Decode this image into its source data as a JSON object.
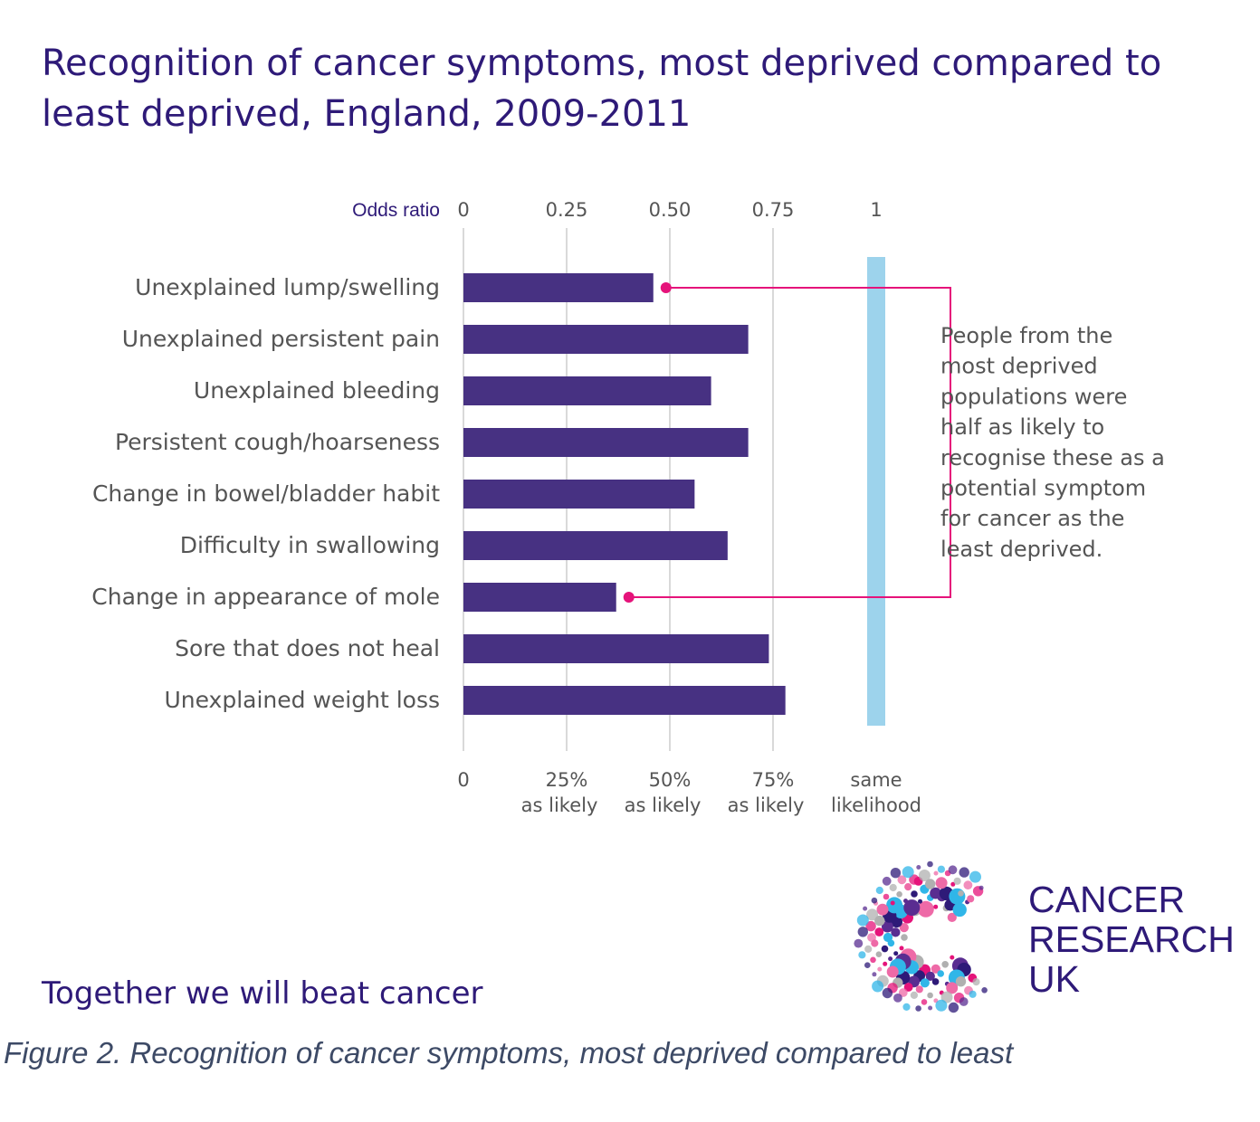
{
  "title": "Recognition of cancer symptoms, most deprived compared to least deprived, England, 2009-2011",
  "chart_data": {
    "type": "bar",
    "orientation": "horizontal",
    "axis_title": "Odds ratio",
    "top_ticks": [
      "0",
      "0.25",
      "0.50",
      "0.75",
      "1"
    ],
    "tick_values": [
      0,
      0.25,
      0.5,
      0.75,
      1
    ],
    "bottom_ticks": [
      {
        "line1": "0",
        "line2": ""
      },
      {
        "line1": "25%",
        "line2": "as likely"
      },
      {
        "line1": "50%",
        "line2": "as likely"
      },
      {
        "line1": "75%",
        "line2": "as likely"
      },
      {
        "line1": "same",
        "line2": "likelihood"
      }
    ],
    "xlim": [
      0,
      1
    ],
    "grid": true,
    "categories": [
      "Unexplained lump/swelling",
      "Unexplained persistent pain",
      "Unexplained bleeding",
      "Persistent cough/hoarseness",
      "Change in bowel/bladder habit",
      "Difficulty in swallowing",
      "Change in appearance of mole",
      "Sore that does not heal",
      "Unexplained weight loss"
    ],
    "values": [
      0.46,
      0.69,
      0.6,
      0.69,
      0.56,
      0.64,
      0.37,
      0.74,
      0.78
    ],
    "reference_line_value": 1,
    "annotation": {
      "lines": [
        "People from the",
        "most deprived",
        "populations were",
        "half as likely to",
        "recognise these as a",
        "potential symptom",
        "for cancer as the",
        "least deprived."
      ],
      "points_to": [
        "Unexplained lump/swelling",
        "Change in appearance of mole"
      ]
    },
    "colors": {
      "bar": "#473182",
      "reference": "#9dd3ec",
      "annotation": "#e5137a",
      "grid": "#d9d9d9",
      "axis_title": "#2e1a78",
      "text": "#555555"
    }
  },
  "branding": {
    "tagline": "Together we will beat cancer",
    "logo_lines": [
      "CANCER",
      "RESEARCH",
      "UK"
    ],
    "logo_colors": [
      "#e5137a",
      "#2e1a78",
      "#b0b0b0",
      "#30b6e8",
      "#ee6aa7",
      "#5a2d91"
    ]
  },
  "caption": "Figure 2. Recognition of cancer symptoms, most deprived compared to least"
}
